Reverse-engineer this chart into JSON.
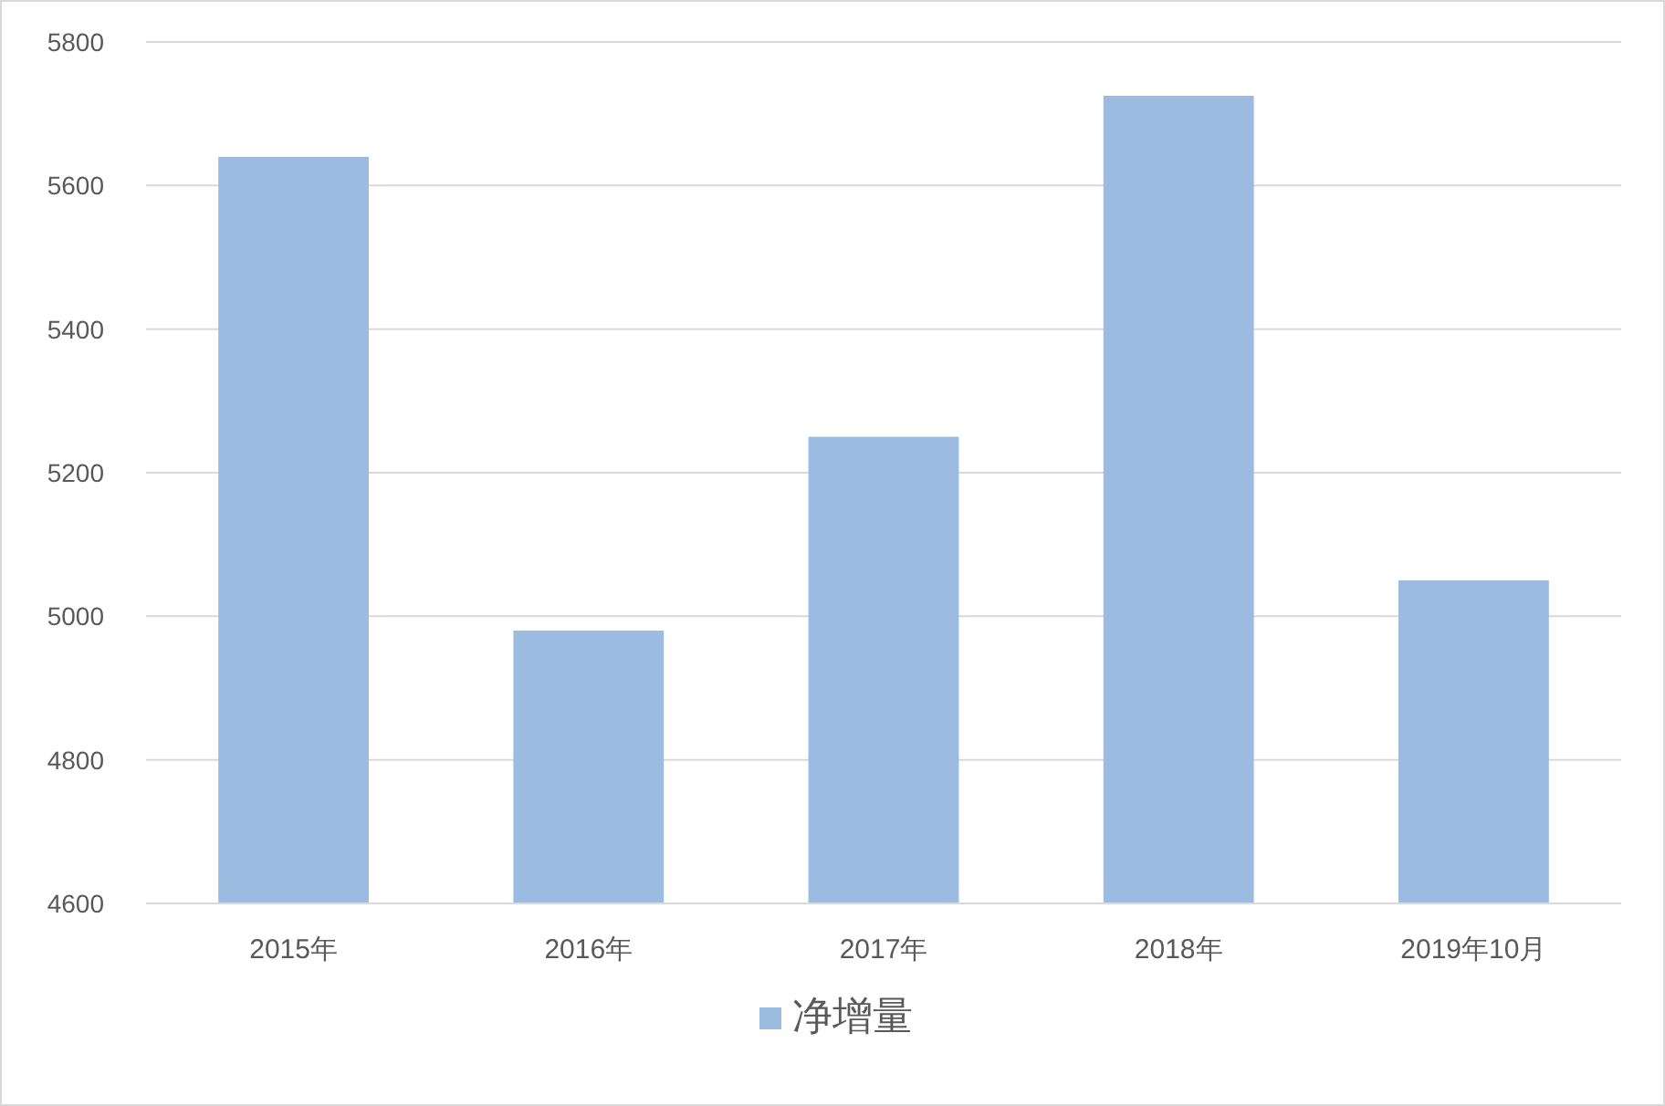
{
  "chart_data": {
    "type": "bar",
    "categories": [
      "2015年",
      "2016年",
      "2017年",
      "2018年",
      "2019年10月"
    ],
    "series": [
      {
        "name": "净增量",
        "color": "#9bbbe0",
        "values": [
          5640,
          4980,
          5250,
          5725,
          5050
        ]
      }
    ],
    "ylim": [
      4600,
      5800
    ],
    "yticks": [
      4600,
      4800,
      5000,
      5200,
      5400,
      5600,
      5800
    ],
    "grid": "y",
    "legend": "bottom"
  }
}
